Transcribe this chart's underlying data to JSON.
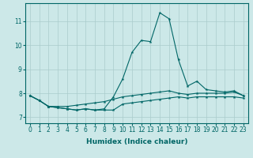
{
  "title": "",
  "xlabel": "Humidex (Indice chaleur)",
  "bg_color": "#cce8e8",
  "line_color": "#006666",
  "grid_color": "#aacccc",
  "x_values": [
    0,
    1,
    2,
    3,
    4,
    5,
    6,
    7,
    8,
    9,
    10,
    11,
    12,
    13,
    14,
    15,
    16,
    17,
    18,
    19,
    20,
    21,
    22,
    23
  ],
  "y_max": [
    7.9,
    7.7,
    7.45,
    7.4,
    7.35,
    7.3,
    7.35,
    7.3,
    7.35,
    7.85,
    8.6,
    9.7,
    10.2,
    10.15,
    11.35,
    11.1,
    9.4,
    8.3,
    8.5,
    8.15,
    8.1,
    8.05,
    8.1,
    7.9
  ],
  "y_mean": [
    7.9,
    7.7,
    7.45,
    7.45,
    7.45,
    7.5,
    7.55,
    7.6,
    7.65,
    7.75,
    7.85,
    7.9,
    7.95,
    8.0,
    8.05,
    8.1,
    8.0,
    7.95,
    8.0,
    8.0,
    8.0,
    8.0,
    8.05,
    7.9
  ],
  "y_min": [
    7.9,
    7.7,
    7.45,
    7.4,
    7.35,
    7.3,
    7.35,
    7.3,
    7.3,
    7.3,
    7.55,
    7.6,
    7.65,
    7.7,
    7.75,
    7.8,
    7.85,
    7.8,
    7.85,
    7.85,
    7.85,
    7.85,
    7.85,
    7.8
  ],
  "ylim": [
    6.75,
    11.75
  ],
  "yticks": [
    7,
    8,
    9,
    10,
    11
  ],
  "xticks": [
    0,
    1,
    2,
    3,
    4,
    5,
    6,
    7,
    8,
    9,
    10,
    11,
    12,
    13,
    14,
    15,
    16,
    17,
    18,
    19,
    20,
    21,
    22,
    23
  ],
  "marker": "*",
  "markersize": 3,
  "linewidth": 0.8,
  "tick_fontsize": 5.5,
  "label_fontsize": 6.5
}
